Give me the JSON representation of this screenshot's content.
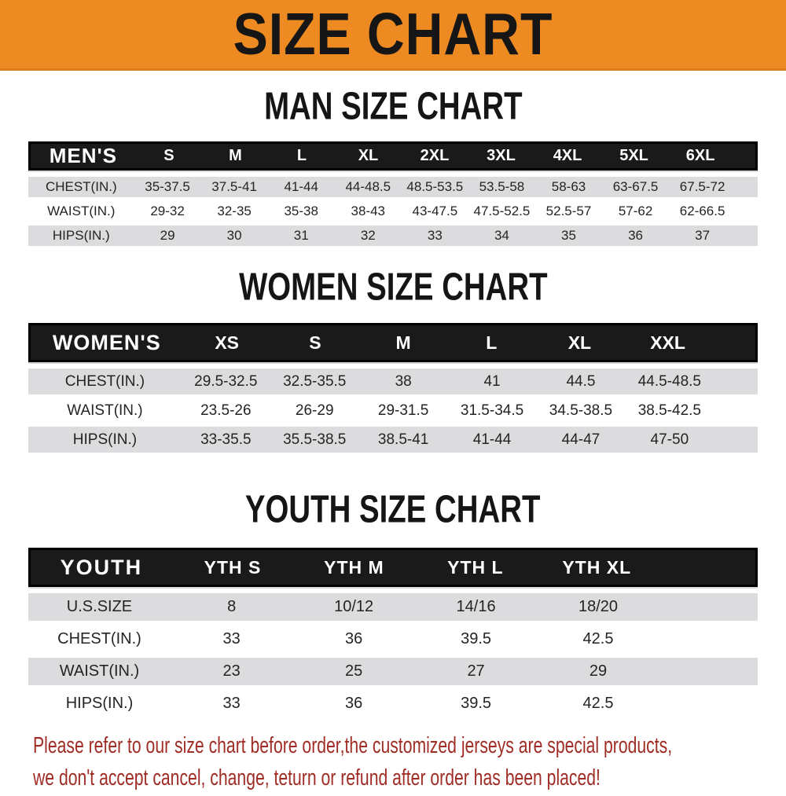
{
  "header": {
    "title": "SIZE CHART",
    "bg_color": "#EE8A22",
    "text_color": "#161616"
  },
  "sections": [
    {
      "title": "MAN SIZE CHART",
      "table": {
        "label": "MEN'S",
        "columns": [
          "S",
          "M",
          "L",
          "XL",
          "2XL",
          "3XL",
          "4XL",
          "5XL",
          "6XL"
        ],
        "rows": [
          {
            "label": "CHEST(IN.)",
            "values": [
              "35-37.5",
              "37.5-41",
              "41-44",
              "44-48.5",
              "48.5-53.5",
              "53.5-58",
              "58-63",
              "63-67.5",
              "67.5-72"
            ]
          },
          {
            "label": "WAIST(IN.)",
            "values": [
              "29-32",
              "32-35",
              "35-38",
              "38-43",
              "43-47.5",
              "47.5-52.5",
              "52.5-57",
              "57-62",
              "62-66.5"
            ]
          },
          {
            "label": "HIPS(IN.)",
            "values": [
              "29",
              "30",
              "31",
              "32",
              "33",
              "34",
              "35",
              "36",
              "37"
            ]
          }
        ]
      }
    },
    {
      "title": "WOMEN SIZE CHART",
      "table": {
        "label": "WOMEN'S",
        "columns": [
          "XS",
          "S",
          "M",
          "L",
          "XL",
          "XXL"
        ],
        "rows": [
          {
            "label": "CHEST(IN.)",
            "values": [
              "29.5-32.5",
              "32.5-35.5",
              "38",
              "41",
              "44.5",
              "44.5-48.5"
            ]
          },
          {
            "label": "WAIST(IN.)",
            "values": [
              "23.5-26",
              "26-29",
              "29-31.5",
              "31.5-34.5",
              "34.5-38.5",
              "38.5-42.5"
            ]
          },
          {
            "label": "HIPS(IN.)",
            "values": [
              "33-35.5",
              "35.5-38.5",
              "38.5-41",
              "41-44",
              "44-47",
              "47-50"
            ]
          }
        ]
      }
    },
    {
      "title": "YOUTH SIZE CHART",
      "table": {
        "label": "YOUTH",
        "columns": [
          "YTH S",
          "YTH M",
          "YTH L",
          "YTH XL"
        ],
        "rows": [
          {
            "label": "U.S.SIZE",
            "values": [
              "8",
              "10/12",
              "14/16",
              "18/20"
            ]
          },
          {
            "label": "CHEST(IN.)",
            "values": [
              "33",
              "36",
              "39.5",
              "42.5"
            ]
          },
          {
            "label": "WAIST(IN.)",
            "values": [
              "23",
              "25",
              "27",
              "29"
            ]
          },
          {
            "label": "HIPS(IN.)",
            "values": [
              "33",
              "36",
              "39.5",
              "42.5"
            ]
          }
        ]
      }
    }
  ],
  "disclaimer": {
    "line1": "Please refer to our size chart before order,the customized jerseys are special products,",
    "line2": "we don't accept cancel, change, teturn or refund after order has been placed!",
    "color": "#A02D25"
  },
  "colors": {
    "accent_orange": "#EE8A22",
    "bar_black": "#1A1A1A",
    "row_gray": "#DCDCDE"
  }
}
